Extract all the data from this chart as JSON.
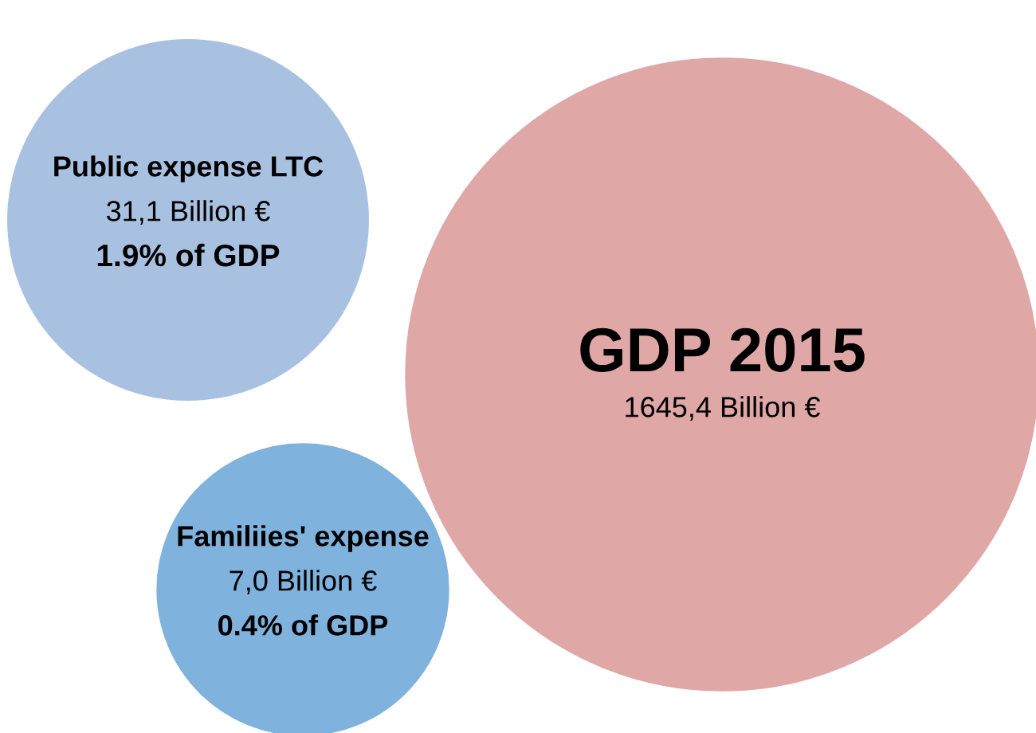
{
  "chart_data": {
    "type": "other",
    "categories": [
      "Public expense LTC",
      "Familiies' expense",
      "GDP 2015"
    ],
    "values": [
      31.1,
      7.0,
      1645.4
    ],
    "value_labels": [
      "31,1 Billion €",
      "7,0 Billion €",
      "1645,4 Billion €"
    ],
    "colors": [
      "#a9c1e1",
      "#7fb3de",
      "#e0a7a7"
    ],
    "annotations": [
      "1.9% of GDP",
      "0.4% of GDP"
    ]
  }
}
